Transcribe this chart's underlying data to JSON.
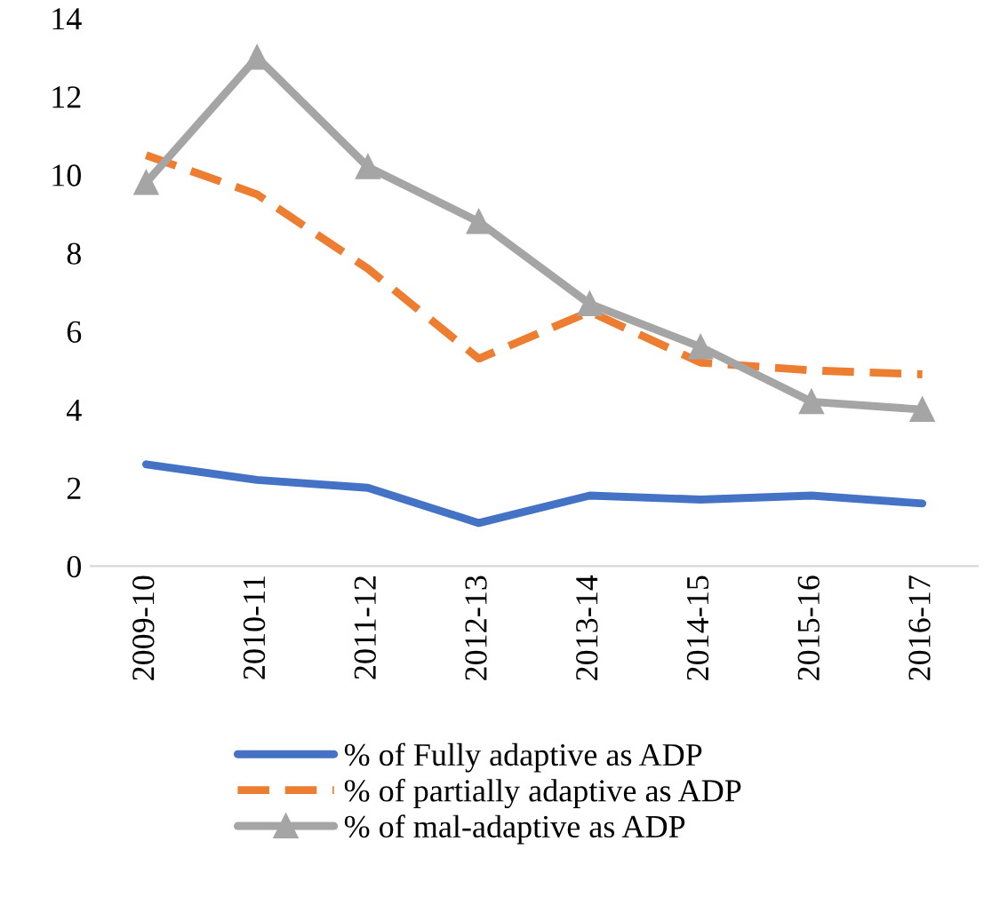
{
  "chart_data": {
    "type": "line",
    "categories": [
      "2009-10",
      "2010-11",
      "2011-12",
      "2012-13",
      "2013-14",
      "2014-15",
      "2015-16",
      "2016-17"
    ],
    "series": [
      {
        "name": "% of Fully adaptive as ADP",
        "color": "#4472c4",
        "line_style": "solid",
        "marker": "none",
        "values": [
          2.6,
          2.2,
          2.0,
          1.1,
          1.8,
          1.7,
          1.8,
          1.6
        ]
      },
      {
        "name": "% of partially adaptive as ADP",
        "color": "#ed7d31",
        "line_style": "dashed",
        "marker": "none",
        "values": [
          10.5,
          9.5,
          7.6,
          5.3,
          6.5,
          5.2,
          5.0,
          4.9
        ]
      },
      {
        "name": "% of mal-adaptive as ADP",
        "color": "#a5a5a5",
        "line_style": "solid",
        "marker": "triangle",
        "values": [
          9.8,
          13.0,
          10.2,
          8.8,
          6.7,
          5.6,
          4.2,
          4.0
        ]
      }
    ],
    "ylim": [
      0,
      14
    ],
    "yticks": [
      0,
      2,
      4,
      6,
      8,
      10,
      12,
      14
    ],
    "grid": false,
    "legend": "bottom"
  }
}
